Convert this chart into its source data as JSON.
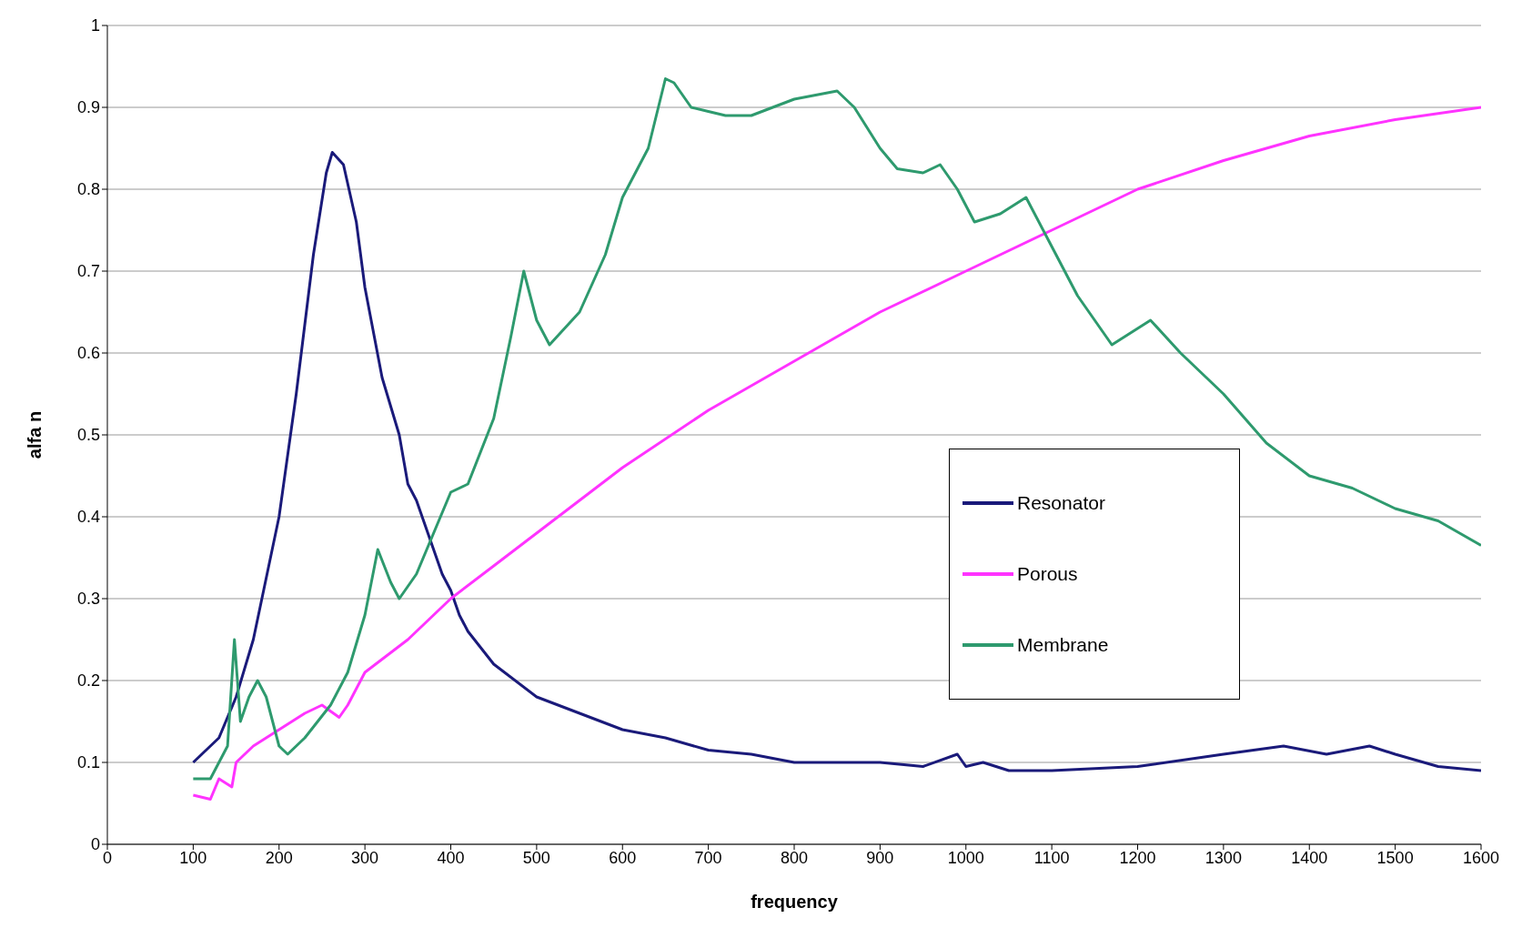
{
  "chart_data": {
    "type": "line",
    "xlabel": "frequency",
    "ylabel": "alfa n",
    "xlim": [
      0,
      1600
    ],
    "xticks": [
      0,
      100,
      200,
      300,
      400,
      500,
      600,
      700,
      800,
      900,
      1000,
      1100,
      1200,
      1300,
      1400,
      1500,
      1600
    ],
    "ylim": [
      0,
      1
    ],
    "yticks": [
      0,
      0.1,
      0.2,
      0.3,
      0.4,
      0.5,
      0.6,
      0.7,
      0.8,
      0.9,
      1
    ],
    "grid": "y",
    "legend": "right",
    "marker": "none",
    "line_style": "solid",
    "series": [
      {
        "name": "Resonator",
        "color": "#1a1a7a",
        "x": [
          100,
          110,
          120,
          130,
          150,
          170,
          200,
          220,
          240,
          255,
          262,
          275,
          290,
          300,
          320,
          340,
          350,
          360,
          380,
          390,
          400,
          410,
          420,
          450,
          500,
          550,
          600,
          650,
          700,
          750,
          800,
          900,
          950,
          990,
          1000,
          1020,
          1050,
          1100,
          1200,
          1300,
          1370,
          1420,
          1470,
          1500,
          1550,
          1600
        ],
        "values": [
          0.1,
          0.11,
          0.12,
          0.13,
          0.18,
          0.25,
          0.4,
          0.55,
          0.72,
          0.82,
          0.845,
          0.83,
          0.76,
          0.68,
          0.57,
          0.5,
          0.44,
          0.42,
          0.36,
          0.33,
          0.31,
          0.28,
          0.26,
          0.22,
          0.18,
          0.16,
          0.14,
          0.13,
          0.115,
          0.11,
          0.1,
          0.1,
          0.095,
          0.11,
          0.095,
          0.1,
          0.09,
          0.09,
          0.095,
          0.11,
          0.12,
          0.11,
          0.12,
          0.11,
          0.095,
          0.09
        ]
      },
      {
        "name": "Porous",
        "color": "#ff33ff",
        "x": [
          100,
          120,
          130,
          145,
          150,
          170,
          200,
          230,
          250,
          270,
          280,
          300,
          350,
          400,
          450,
          500,
          550,
          600,
          700,
          800,
          900,
          1000,
          1100,
          1200,
          1300,
          1400,
          1500,
          1600
        ],
        "values": [
          0.06,
          0.055,
          0.08,
          0.07,
          0.1,
          0.12,
          0.14,
          0.16,
          0.17,
          0.155,
          0.17,
          0.21,
          0.25,
          0.3,
          0.34,
          0.38,
          0.42,
          0.46,
          0.53,
          0.59,
          0.65,
          0.7,
          0.75,
          0.8,
          0.835,
          0.865,
          0.885,
          0.9
        ]
      },
      {
        "name": "Membrane",
        "color": "#2e9a6e",
        "x": [
          100,
          120,
          140,
          148,
          155,
          165,
          175,
          185,
          200,
          210,
          230,
          260,
          280,
          300,
          315,
          330,
          340,
          360,
          380,
          400,
          420,
          450,
          470,
          485,
          500,
          515,
          550,
          580,
          600,
          630,
          650,
          660,
          680,
          700,
          720,
          750,
          800,
          850,
          870,
          900,
          920,
          950,
          970,
          990,
          1010,
          1040,
          1070,
          1100,
          1130,
          1170,
          1200,
          1215,
          1250,
          1300,
          1350,
          1400,
          1450,
          1500,
          1550,
          1600
        ],
        "values": [
          0.08,
          0.08,
          0.12,
          0.25,
          0.15,
          0.18,
          0.2,
          0.18,
          0.12,
          0.11,
          0.13,
          0.17,
          0.21,
          0.28,
          0.36,
          0.32,
          0.3,
          0.33,
          0.38,
          0.43,
          0.44,
          0.52,
          0.62,
          0.7,
          0.64,
          0.61,
          0.65,
          0.72,
          0.79,
          0.85,
          0.935,
          0.93,
          0.9,
          0.895,
          0.89,
          0.89,
          0.91,
          0.92,
          0.9,
          0.85,
          0.825,
          0.82,
          0.83,
          0.8,
          0.76,
          0.77,
          0.79,
          0.73,
          0.67,
          0.61,
          0.63,
          0.64,
          0.6,
          0.55,
          0.49,
          0.45,
          0.435,
          0.41,
          0.395,
          0.365
        ]
      }
    ]
  }
}
